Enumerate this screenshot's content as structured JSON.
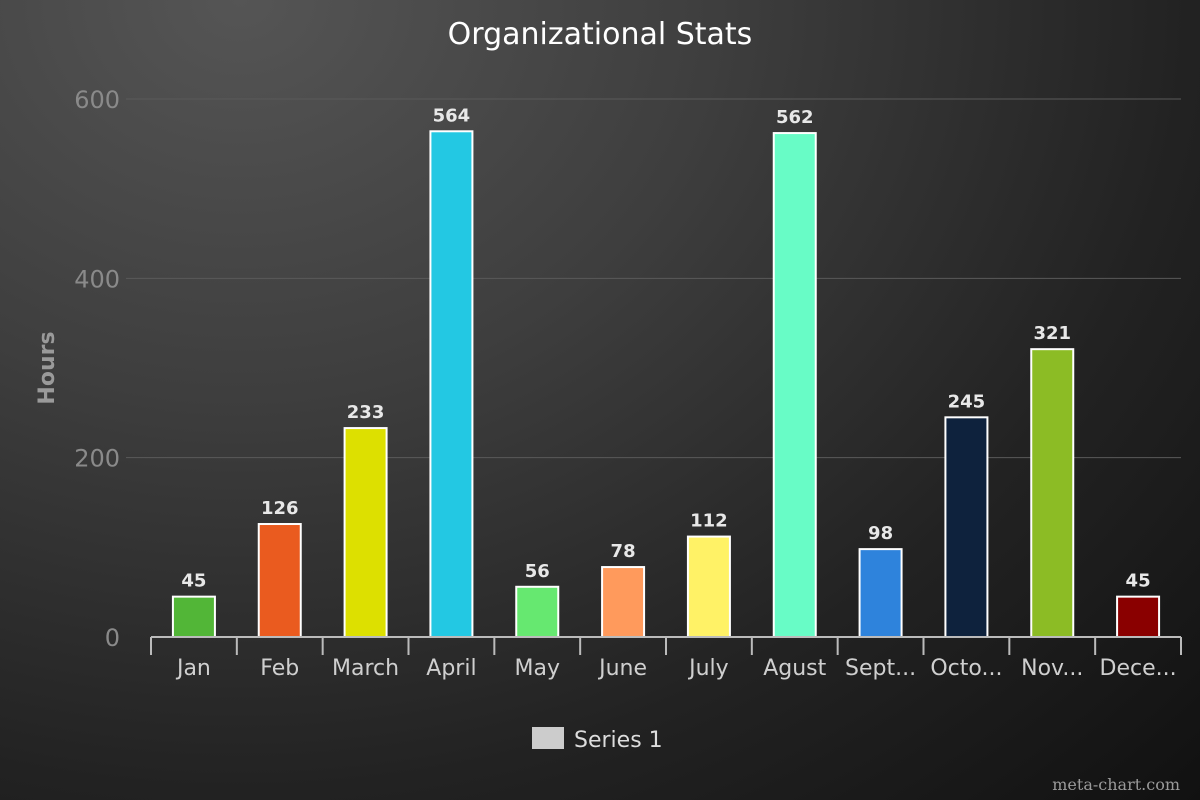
{
  "chart_data": {
    "type": "bar",
    "title": "Organizational Stats",
    "xlabel": "",
    "ylabel": "Hours",
    "ylim": [
      0,
      600
    ],
    "yticks": [
      0,
      200,
      400,
      600
    ],
    "grid": true,
    "legend_position": "bottom",
    "categories": [
      "Jan",
      "Feb",
      "March",
      "April",
      "May",
      "June",
      "July",
      "Agust",
      "Sept...",
      "Octo...",
      "Nov...",
      "Dece..."
    ],
    "series": [
      {
        "name": "Series 1",
        "values": [
          45,
          126,
          233,
          564,
          56,
          78,
          112,
          562,
          98,
          245,
          321,
          45
        ]
      }
    ],
    "bar_colors": [
      "#52b637",
      "#ea5b1f",
      "#dde000",
      "#23c8e3",
      "#66e870",
      "#ff9a5c",
      "#fff266",
      "#68fcc6",
      "#2e83dc",
      "#0e223d",
      "#8cbc25",
      "#8a0000"
    ],
    "legend_swatch_color": "#cccccc"
  },
  "credit": "meta-chart.com"
}
